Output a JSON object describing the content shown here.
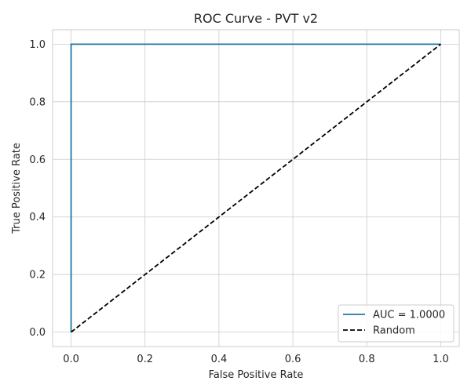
{
  "chart_data": {
    "type": "line",
    "title": "ROC Curve - PVT v2",
    "xlabel": "False Positive Rate",
    "ylabel": "True Positive Rate",
    "xlim": [
      -0.05,
      1.05
    ],
    "ylim": [
      -0.05,
      1.05
    ],
    "xticks": [
      0.0,
      0.2,
      0.4,
      0.6,
      0.8,
      1.0
    ],
    "yticks": [
      0.0,
      0.2,
      0.4,
      0.6,
      0.8,
      1.0
    ],
    "xtick_labels": [
      "0.0",
      "0.2",
      "0.4",
      "0.6",
      "0.8",
      "1.0"
    ],
    "ytick_labels": [
      "0.0",
      "0.2",
      "0.4",
      "0.6",
      "0.8",
      "1.0"
    ],
    "grid": true,
    "legend_position": "lower-right",
    "series": [
      {
        "name": "AUC = 1.0000",
        "color": "#1f77a0",
        "style": "solid",
        "x": [
          0.0,
          0.0,
          1.0
        ],
        "y": [
          0.0,
          1.0,
          1.0
        ]
      },
      {
        "name": "Random",
        "color": "#000000",
        "style": "dashed",
        "x": [
          0.0,
          1.0
        ],
        "y": [
          0.0,
          1.0
        ]
      }
    ]
  }
}
